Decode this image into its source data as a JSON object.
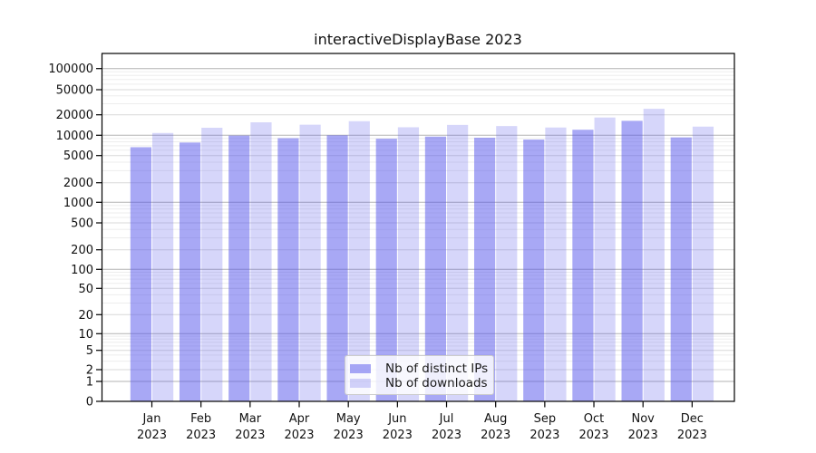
{
  "title": "interactiveDisplayBase 2023",
  "legend": {
    "items": [
      {
        "label": "Nb of distinct IPs",
        "color": "rgba(85,85,235,0.51)"
      },
      {
        "label": "Nb of downloads",
        "color": "rgba(85,85,235,0.24)"
      }
    ]
  },
  "chart_data": {
    "type": "bar",
    "title": "interactiveDisplayBase 2023",
    "x_axis": {
      "months": [
        "Jan",
        "Feb",
        "Mar",
        "Apr",
        "May",
        "Jun",
        "Jul",
        "Aug",
        "Sep",
        "Oct",
        "Nov",
        "Dec"
      ],
      "year_line": "2023"
    },
    "y_axis": {
      "scale": "symlog",
      "tick_labels": [
        "0",
        "1",
        "2",
        "5",
        "10",
        "20",
        "50",
        "100",
        "200",
        "500",
        "1000",
        "2000",
        "5000",
        "10000",
        "20000",
        "50000",
        "100000"
      ],
      "ylim": [
        0,
        162000
      ],
      "grid": "major+minor"
    },
    "series": [
      {
        "name": "Nb of distinct IPs",
        "color": "rgba(85,85,235,0.51)",
        "values": [
          6650,
          7800,
          9900,
          9050,
          10000,
          8900,
          9550,
          9200,
          8650,
          12050,
          16300,
          9300
        ]
      },
      {
        "name": "Nb of downloads",
        "color": "rgba(85,85,235,0.24)",
        "values": [
          10800,
          12900,
          15500,
          14300,
          16100,
          13100,
          14200,
          13650,
          13000,
          18250,
          24900,
          13400
        ]
      }
    ],
    "legend_labels": [
      "Nb of distinct IPs",
      "Nb of downloads"
    ]
  }
}
